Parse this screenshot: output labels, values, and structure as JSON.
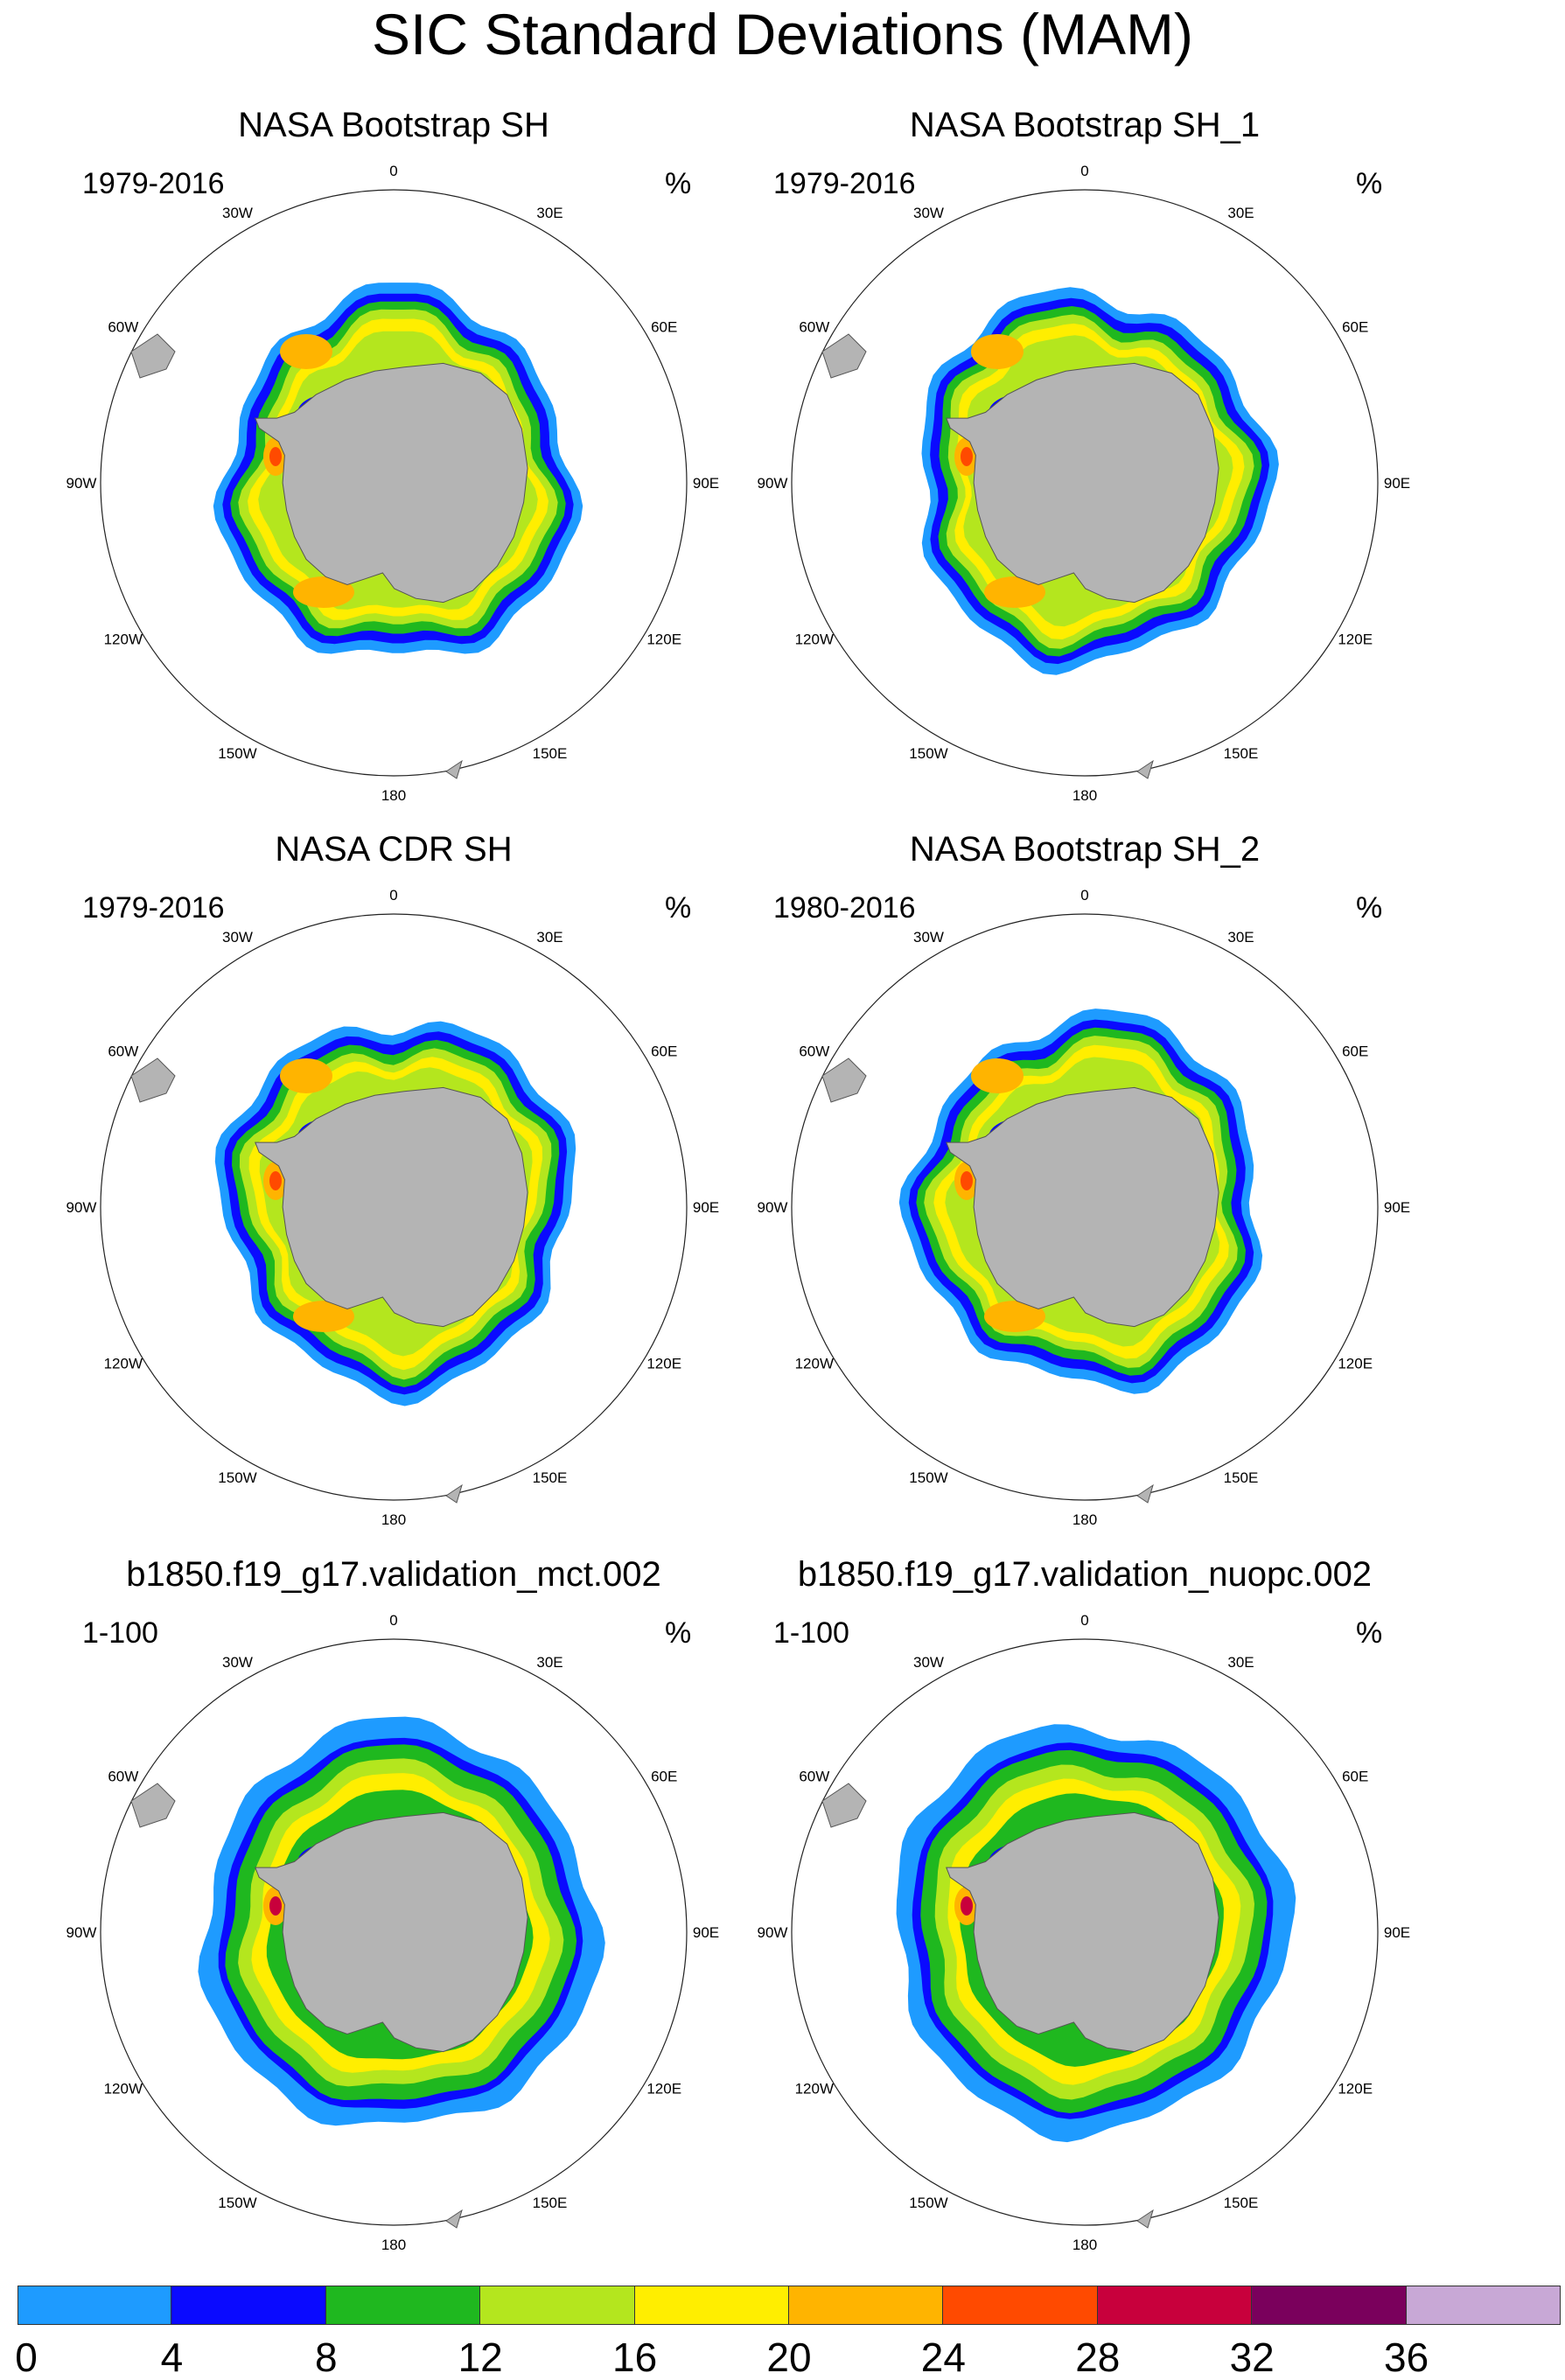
{
  "title": "SIC Standard Deviations (MAM)",
  "units_label": "%",
  "longitude_labels": [
    "0",
    "30E",
    "60E",
    "90E",
    "120E",
    "150E",
    "180",
    "150W",
    "120W",
    "90W",
    "60W",
    "30W"
  ],
  "panels": [
    {
      "title": "NASA Bootstrap SH",
      "period": "1979-2016",
      "type": "obs"
    },
    {
      "title": "NASA Bootstrap SH_1",
      "period": "1979-2016",
      "type": "obs"
    },
    {
      "title": "NASA CDR SH",
      "period": "1979-2016",
      "type": "obs"
    },
    {
      "title": "NASA Bootstrap SH_2",
      "period": "1980-2016",
      "type": "obs"
    },
    {
      "title": "b1850.f19_g17.validation_mct.002",
      "period": "1-100",
      "type": "model"
    },
    {
      "title": "b1850.f19_g17.validation_nuopc.002",
      "period": "1-100",
      "type": "model"
    }
  ],
  "colorbar": {
    "ticks": [
      "0",
      "4",
      "8",
      "12",
      "16",
      "20",
      "24",
      "28",
      "32",
      "36"
    ],
    "colors": [
      "#1e9bff",
      "#0a0aff",
      "#1fb81f",
      "#b4e61e",
      "#ffee00",
      "#ffb400",
      "#ff4a00",
      "#c8003c",
      "#7a005c",
      "#c8a8d6"
    ]
  },
  "colors": {
    "land": "#b4b4b4",
    "ocean": "#ffffff",
    "border": "#000000"
  }
}
